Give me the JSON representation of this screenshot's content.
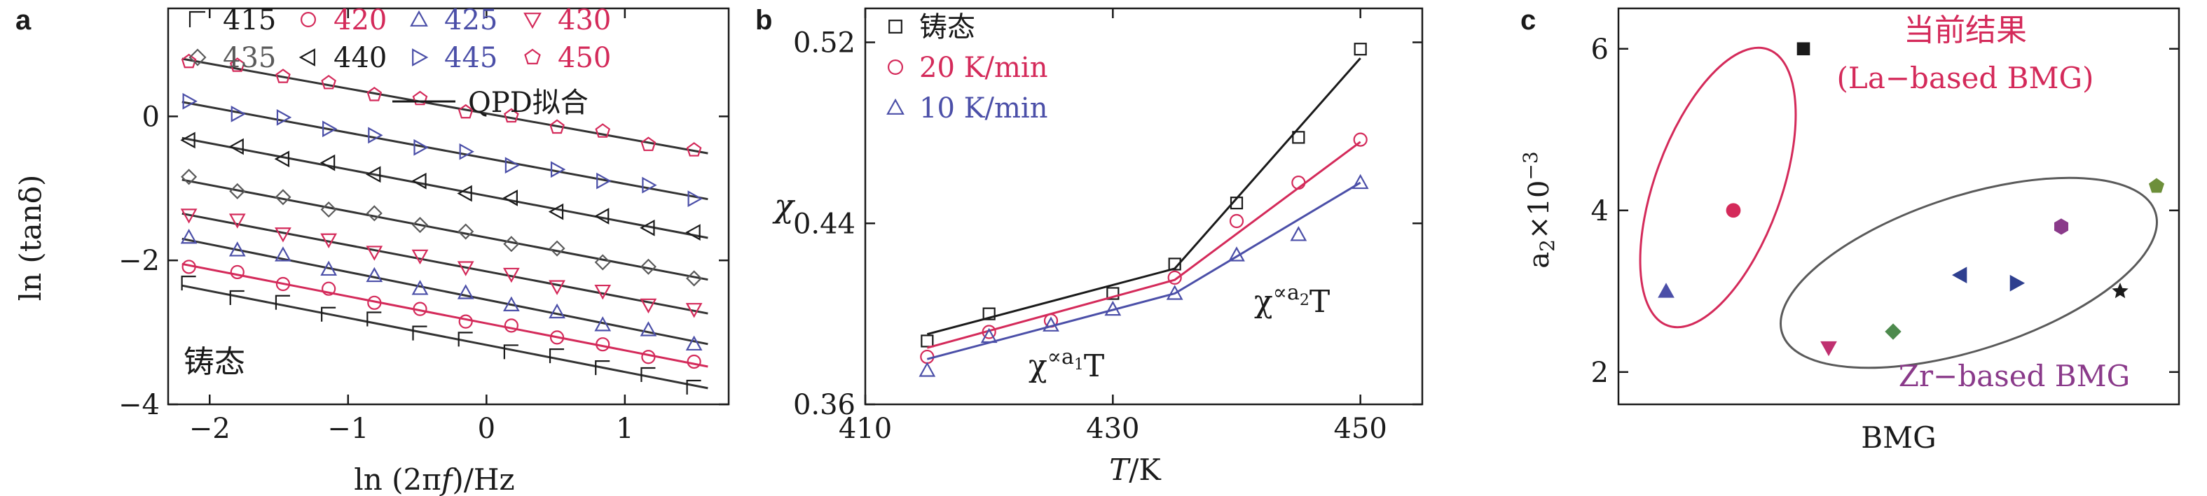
{
  "colors": {
    "black": "#1a1a1a",
    "red": "#d42a5a",
    "blue": "#4b4fa8",
    "gray": "#5a5a5a",
    "green": "#4d8a4d",
    "purple": "#8a3a8a",
    "darkblue": "#2e3f8f",
    "magenta": "#c03070",
    "olive": "#6d8f3a"
  },
  "chart_data": [
    {
      "panel": "a",
      "type": "scatter",
      "xlabel": "ln (2πf)/Hz",
      "ylabel": "ln (tanδ)",
      "xlim": [
        -2.3,
        1.75
      ],
      "ylim": [
        -4,
        1.5
      ],
      "xticks": [
        -2,
        -1,
        0,
        1
      ],
      "xtick_labels": [
        "−2",
        "−1",
        "0",
        "1"
      ],
      "yticks": [
        -4,
        -2,
        0
      ],
      "ytick_labels": [
        "−4",
        "−2",
        "0"
      ],
      "annotation": "铸态",
      "fit_label": "QPD拟合",
      "x": [
        -2.15,
        -1.8,
        -1.47,
        -1.14,
        -0.81,
        -0.48,
        -0.15,
        0.18,
        0.51,
        0.84,
        1.17,
        1.5
      ],
      "series": [
        {
          "name": "415",
          "marker": "corner",
          "color": "black",
          "y0": -2.35,
          "slope": -0.38
        },
        {
          "name": "420",
          "marker": "circle",
          "color": "red",
          "y0": -2.05,
          "slope": -0.38
        },
        {
          "name": "425",
          "marker": "triangle-up",
          "color": "blue",
          "y0": -1.7,
          "slope": -0.39
        },
        {
          "name": "430",
          "marker": "triangle-down",
          "color": "red",
          "y0": -1.35,
          "slope": -0.37
        },
        {
          "name": "435",
          "marker": "diamond",
          "color": "gray",
          "y0": -0.88,
          "slope": -0.37
        },
        {
          "name": "440",
          "marker": "triangle-left",
          "color": "black",
          "y0": -0.3,
          "slope": -0.37
        },
        {
          "name": "445",
          "marker": "triangle-right",
          "color": "blue",
          "y0": 0.2,
          "slope": -0.36
        },
        {
          "name": "450",
          "marker": "pentagon",
          "color": "red",
          "y0": 0.8,
          "slope": -0.35
        }
      ]
    },
    {
      "panel": "b",
      "type": "line",
      "xlabel": "T/K",
      "ylabel": "χ",
      "xlim": [
        410,
        455
      ],
      "ylim": [
        0.36,
        0.535
      ],
      "xticks": [
        410,
        430,
        450
      ],
      "yticks": [
        0.36,
        0.44,
        0.52
      ],
      "ytick_labels": [
        "0.36",
        "0.44",
        "0.52"
      ],
      "annotation_left": "χ∝a₁T",
      "annotation_right": "χ∝a₂T",
      "series": [
        {
          "name": "铸态",
          "marker": "square",
          "color": "black",
          "x": [
            415,
            420,
            430,
            435,
            440,
            445,
            450
          ],
          "y": [
            0.388,
            0.4,
            0.409,
            0.422,
            0.449,
            0.478,
            0.517
          ],
          "fit": [
            [
              415,
              0.391
            ],
            [
              435,
              0.42
            ],
            [
              450,
              0.513
            ]
          ]
        },
        {
          "name": "20 K/min",
          "marker": "circle",
          "color": "red",
          "x": [
            415,
            420,
            425,
            435,
            440,
            445,
            450
          ],
          "y": [
            0.381,
            0.392,
            0.397,
            0.416,
            0.441,
            0.458,
            0.477
          ],
          "fit": [
            [
              415,
              0.385
            ],
            [
              435,
              0.415
            ],
            [
              450,
              0.476
            ]
          ]
        },
        {
          "name": "10 K/min",
          "marker": "triangle-up",
          "color": "blue",
          "x": [
            415,
            420,
            425,
            430,
            435,
            440,
            445,
            450
          ],
          "y": [
            0.375,
            0.39,
            0.395,
            0.402,
            0.409,
            0.426,
            0.435,
            0.458
          ],
          "fit": [
            [
              415,
              0.38
            ],
            [
              435,
              0.409
            ],
            [
              450,
              0.458
            ]
          ]
        }
      ]
    },
    {
      "panel": "c",
      "type": "scatter",
      "xlabel": "BMG",
      "ylabel": "a₂×10⁻³",
      "xlim": [
        0,
        10
      ],
      "ylim": [
        1.6,
        6.5
      ],
      "yticks": [
        2,
        4,
        6
      ],
      "annotation_la_line1": "当前结果",
      "annotation_la_line2": "(La−based BMG)",
      "annotation_zr": "Zr−based BMG",
      "points": [
        {
          "x": 0.85,
          "y": 3.0,
          "marker": "triangle-up",
          "color": "blue"
        },
        {
          "x": 2.05,
          "y": 4.0,
          "marker": "circle",
          "color": "red"
        },
        {
          "x": 3.3,
          "y": 6.0,
          "marker": "square",
          "color": "black"
        },
        {
          "x": 3.75,
          "y": 2.3,
          "marker": "triangle-down",
          "color": "magenta"
        },
        {
          "x": 4.9,
          "y": 2.5,
          "marker": "diamond",
          "color": "green"
        },
        {
          "x": 6.1,
          "y": 3.2,
          "marker": "triangle-left",
          "color": "darkblue"
        },
        {
          "x": 7.1,
          "y": 3.1,
          "marker": "triangle-right",
          "color": "darkblue"
        },
        {
          "x": 7.9,
          "y": 3.8,
          "marker": "hexagon",
          "color": "purple"
        },
        {
          "x": 8.95,
          "y": 3.0,
          "marker": "star",
          "color": "black"
        },
        {
          "x": 9.6,
          "y": 4.3,
          "marker": "pentagon",
          "color": "olive"
        }
      ]
    }
  ]
}
